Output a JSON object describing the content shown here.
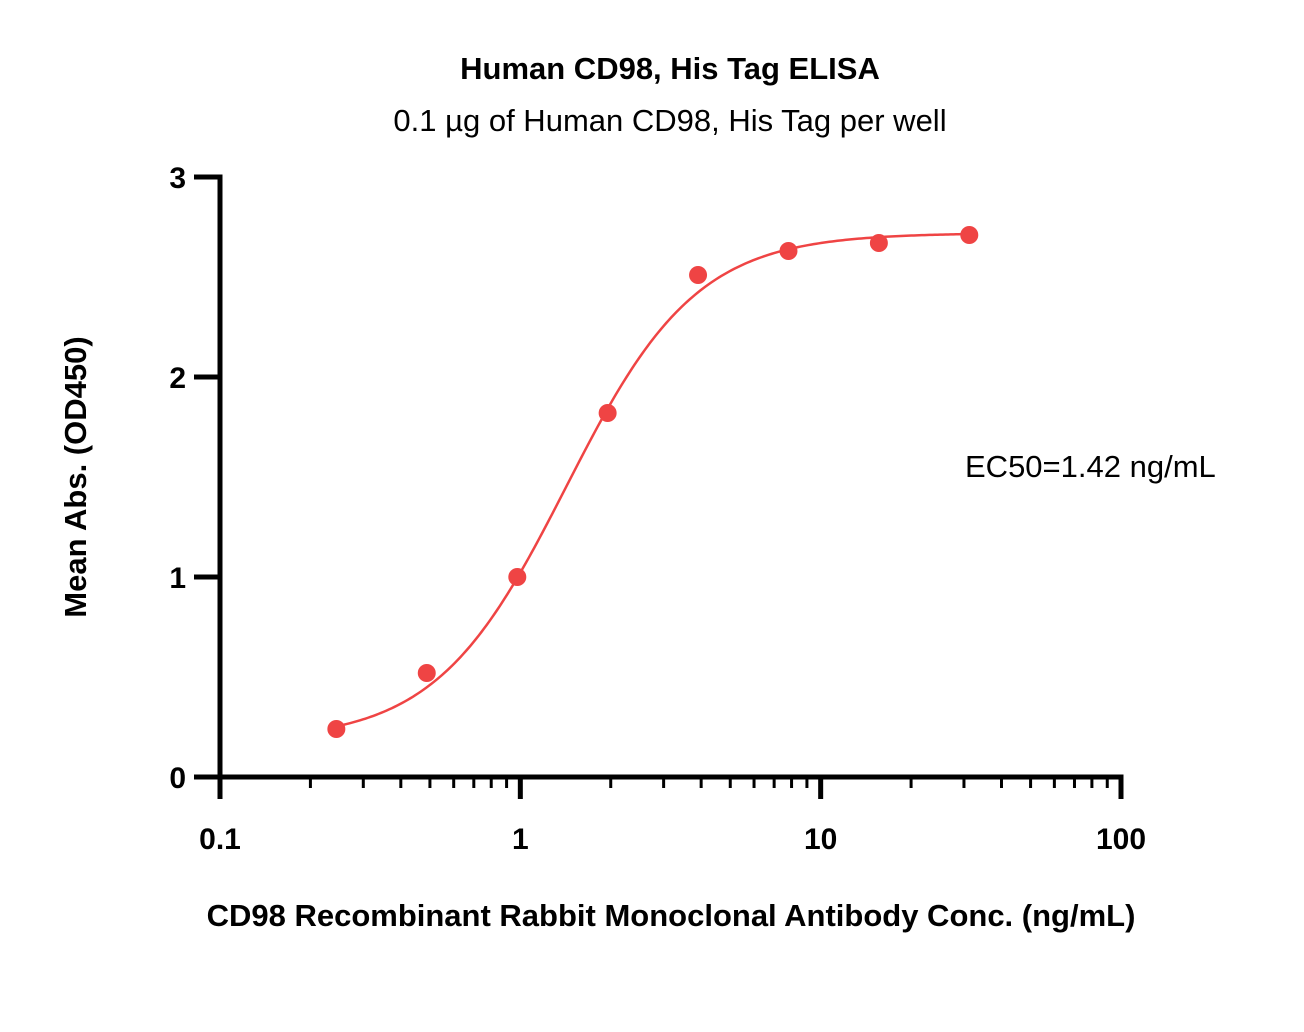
{
  "chart_data": {
    "type": "scatter",
    "title": "Human CD98, His Tag ELISA",
    "subtitle": "0.1 µg of Human CD98, His Tag per well",
    "xlabel": "CD98 Recombinant Rabbit Monoclonal Antibody Conc. (ng/mL)",
    "ylabel": "Mean Abs. (OD450)",
    "xscale": "log",
    "xlim": [
      0.1,
      100
    ],
    "ylim": [
      0,
      3
    ],
    "xticks": [
      "0.1",
      "1",
      "10",
      "100"
    ],
    "yticks": [
      "0",
      "1",
      "2",
      "3"
    ],
    "grid": false,
    "legend": "none",
    "annotation": "EC50=1.42 ng/mL",
    "color": "#ef4444",
    "points": {
      "x": [
        0.244,
        0.488,
        0.977,
        1.953,
        3.906,
        7.813,
        15.625,
        31.25
      ],
      "y": [
        0.24,
        0.52,
        1.0,
        1.82,
        2.51,
        2.63,
        2.67,
        2.71
      ]
    },
    "fit": {
      "model": "4PL",
      "ec50": 1.42,
      "bottom": 0.18,
      "top": 2.72,
      "hill": 2.0
    }
  }
}
